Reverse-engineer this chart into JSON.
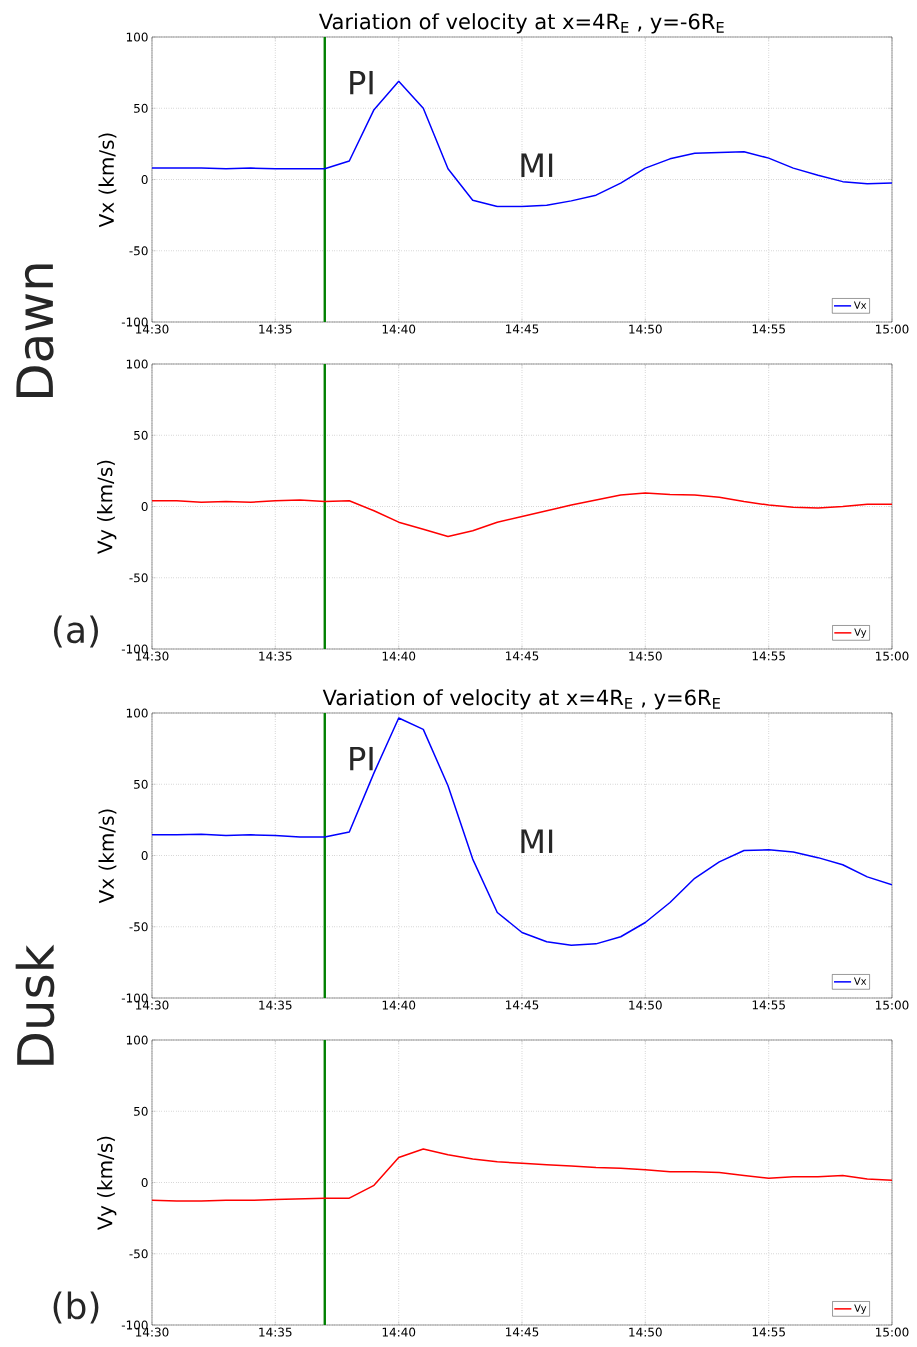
{
  "chart_data": [
    {
      "type": "line",
      "title": "Variation of velocity at x=4R$_{E}$ , y=-6R$_{E}$",
      "ylabel": "Vx (km/s)",
      "x": [
        14.5,
        14.5167,
        14.5333,
        14.55,
        14.5667,
        14.5833,
        14.6,
        14.6167,
        14.6333,
        14.65,
        14.6667,
        14.6833,
        14.7,
        14.7167,
        14.7333,
        14.75,
        14.7667,
        14.7833,
        14.8,
        14.8167,
        14.8333,
        14.85,
        14.8667,
        14.8833,
        14.9,
        14.9167,
        14.9333,
        14.95,
        14.9667,
        14.9833,
        15
      ],
      "series": [
        {
          "name": "Vx",
          "color": "#0000ff",
          "values": [
            8,
            8,
            8,
            7.5,
            8,
            7.5,
            7.5,
            7.5,
            13,
            49,
            69,
            50,
            7.5,
            -14.5,
            -19,
            -19,
            -18,
            -15,
            -11,
            -2.5,
            8,
            14.5,
            18.5,
            19,
            19.5,
            15,
            8,
            3,
            -1.5,
            -3,
            -2.5
          ]
        }
      ],
      "xlim": [
        14.5,
        15
      ],
      "xticks": [
        {
          "value": 14.5,
          "label": "14:30"
        },
        {
          "value": 14.5833,
          "label": "14:35"
        },
        {
          "value": 14.6667,
          "label": "14:40"
        },
        {
          "value": 14.75,
          "label": "14:45"
        },
        {
          "value": 14.8333,
          "label": "14:50"
        },
        {
          "value": 14.9167,
          "label": "14:55"
        },
        {
          "value": 15,
          "label": "15:00"
        }
      ],
      "ylim": [
        -100,
        100
      ],
      "yticks": [
        -100,
        -50,
        0,
        50,
        100
      ],
      "grid": true,
      "legend": "bottom right",
      "ref_lines": [
        {
          "axis": "x",
          "value": 14.6167,
          "color": "#008000"
        }
      ],
      "annotations": [
        "PI",
        "MI",
        "Dawn"
      ]
    },
    {
      "type": "line",
      "ylabel": "Vy (km/s)",
      "x": [
        14.5,
        14.5167,
        14.5333,
        14.55,
        14.5667,
        14.5833,
        14.6,
        14.6167,
        14.6333,
        14.65,
        14.6667,
        14.6833,
        14.7,
        14.7167,
        14.7333,
        14.75,
        14.7667,
        14.7833,
        14.8,
        14.8167,
        14.8333,
        14.85,
        14.8667,
        14.8833,
        14.9,
        14.9167,
        14.9333,
        14.95,
        14.9667,
        14.9833,
        15
      ],
      "series": [
        {
          "name": "Vy",
          "color": "#ff0000",
          "values": [
            4,
            4,
            3,
            3.5,
            3,
            4,
            4.5,
            3.5,
            4,
            -3,
            -11,
            -16,
            -21,
            -17,
            -11,
            -7,
            -3,
            1,
            4.5,
            8,
            9.5,
            8.5,
            8,
            6.5,
            3.5,
            1,
            -0.5,
            -1,
            0,
            1.5,
            1.5
          ]
        }
      ],
      "xlim": [
        14.5,
        15
      ],
      "xticks": [
        {
          "value": 14.5,
          "label": "14:30"
        },
        {
          "value": 14.5833,
          "label": "14:35"
        },
        {
          "value": 14.6667,
          "label": "14:40"
        },
        {
          "value": 14.75,
          "label": "14:45"
        },
        {
          "value": 14.8333,
          "label": "14:50"
        },
        {
          "value": 14.9167,
          "label": "14:55"
        },
        {
          "value": 15,
          "label": "15:00"
        }
      ],
      "ylim": [
        -100,
        100
      ],
      "yticks": [
        -100,
        -50,
        0,
        50,
        100
      ],
      "grid": true,
      "legend": "bottom right",
      "ref_lines": [
        {
          "axis": "x",
          "value": 14.6167,
          "color": "#008000"
        }
      ],
      "annotations": [
        "(a)"
      ]
    },
    {
      "type": "line",
      "title": "Variation of velocity at x=4R$_{E}$ , y=6R$_{E}$",
      "ylabel": "Vx (km/s)",
      "x": [
        14.5,
        14.5167,
        14.5333,
        14.55,
        14.5667,
        14.5833,
        14.6,
        14.6167,
        14.6333,
        14.65,
        14.6667,
        14.6833,
        14.7,
        14.7167,
        14.7333,
        14.75,
        14.7667,
        14.7833,
        14.8,
        14.8167,
        14.8333,
        14.85,
        14.8667,
        14.8833,
        14.9,
        14.9167,
        14.9333,
        14.95,
        14.9667,
        14.9833,
        15
      ],
      "series": [
        {
          "name": "Vx",
          "color": "#0000ff",
          "values": [
            14.5,
            14.5,
            15,
            14,
            14.5,
            14,
            13,
            13,
            16.5,
            58,
            96.5,
            88.5,
            49,
            -2.5,
            -40,
            -54,
            -60.5,
            -63,
            -62,
            -57,
            -47,
            -33,
            -16,
            -4.5,
            3.5,
            4,
            2.5,
            -1.5,
            -6.5,
            -15,
            -20.5
          ]
        }
      ],
      "xlim": [
        14.5,
        15
      ],
      "xticks": [
        {
          "value": 14.5,
          "label": "14:30"
        },
        {
          "value": 14.5833,
          "label": "14:35"
        },
        {
          "value": 14.6667,
          "label": "14:40"
        },
        {
          "value": 14.75,
          "label": "14:45"
        },
        {
          "value": 14.8333,
          "label": "14:50"
        },
        {
          "value": 14.9167,
          "label": "14:55"
        },
        {
          "value": 15,
          "label": "15:00"
        }
      ],
      "ylim": [
        -100,
        100
      ],
      "yticks": [
        -100,
        -50,
        0,
        50,
        100
      ],
      "grid": true,
      "legend": "bottom right",
      "ref_lines": [
        {
          "axis": "x",
          "value": 14.6167,
          "color": "#008000"
        }
      ],
      "annotations": [
        "PI",
        "MI",
        "Dusk"
      ]
    },
    {
      "type": "line",
      "ylabel": "Vy (km/s)",
      "x": [
        14.5,
        14.5167,
        14.5333,
        14.55,
        14.5667,
        14.5833,
        14.6,
        14.6167,
        14.6333,
        14.65,
        14.6667,
        14.6833,
        14.7,
        14.7167,
        14.7333,
        14.75,
        14.7667,
        14.7833,
        14.8,
        14.8167,
        14.8333,
        14.85,
        14.8667,
        14.8833,
        14.9,
        14.9167,
        14.9333,
        14.95,
        14.9667,
        14.9833,
        15
      ],
      "series": [
        {
          "name": "Vy",
          "color": "#ff0000",
          "values": [
            -12.5,
            -13,
            -13,
            -12.5,
            -12.5,
            -12,
            -11.5,
            -11,
            -11,
            -2,
            17.5,
            23.5,
            19.5,
            16.5,
            14.5,
            13.5,
            12.5,
            11.5,
            10.5,
            10,
            9,
            7.5,
            7.5,
            7,
            5,
            3,
            4,
            4,
            5,
            2.5,
            1.5
          ]
        }
      ],
      "xlim": [
        14.5,
        15
      ],
      "xticks": [
        {
          "value": 14.5,
          "label": "14:30"
        },
        {
          "value": 14.5833,
          "label": "14:35"
        },
        {
          "value": 14.6667,
          "label": "14:40"
        },
        {
          "value": 14.75,
          "label": "14:45"
        },
        {
          "value": 14.8333,
          "label": "14:50"
        },
        {
          "value": 14.9167,
          "label": "14:55"
        },
        {
          "value": 15,
          "label": "15:00"
        }
      ],
      "ylim": [
        -100,
        100
      ],
      "yticks": [
        -100,
        -50,
        0,
        50,
        100
      ],
      "grid": true,
      "legend": "bottom right",
      "ref_lines": [
        {
          "axis": "x",
          "value": 14.6167,
          "color": "#008000"
        }
      ],
      "annotations": [
        "(b)"
      ]
    }
  ]
}
